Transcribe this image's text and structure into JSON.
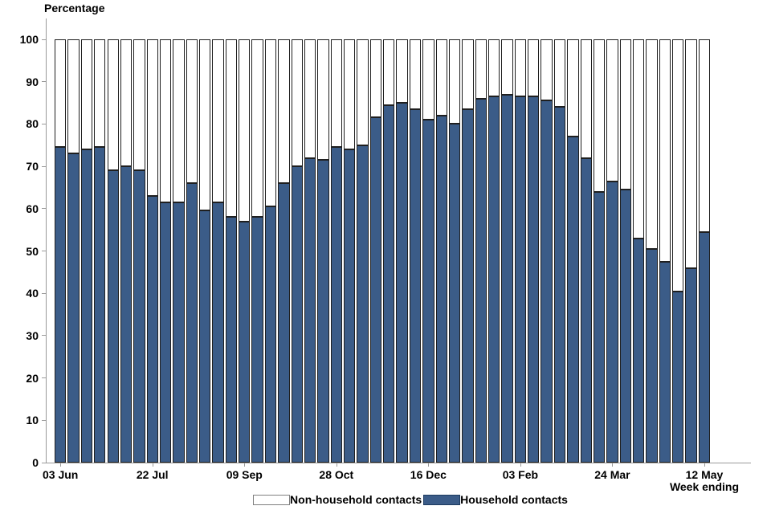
{
  "chart_data": {
    "type": "bar",
    "stacked": true,
    "title": "",
    "ylabel": "Percentage",
    "xlabel": "Week ending",
    "unit": "%",
    "ylim": [
      0,
      100
    ],
    "y_ticks": [
      0,
      10,
      20,
      30,
      40,
      50,
      60,
      70,
      80,
      90,
      100
    ],
    "grid": false,
    "legend_position": "bottom",
    "n_weeks": 50,
    "x_ticks": [
      {
        "label": "03 Jun",
        "week_index": 0
      },
      {
        "label": "22 Jul",
        "week_index": 7
      },
      {
        "label": "09 Sep",
        "week_index": 14
      },
      {
        "label": "28 Oct",
        "week_index": 21
      },
      {
        "label": "16 Dec",
        "week_index": 28
      },
      {
        "label": "03 Feb",
        "week_index": 35
      },
      {
        "label": "24 Mar",
        "week_index": 42
      },
      {
        "label": "12 May",
        "week_index": 49
      }
    ],
    "series": [
      {
        "name": "Household contacts",
        "color": "#3b5c88",
        "values": [
          74.5,
          73,
          74,
          74.5,
          69,
          70,
          69,
          63,
          61.5,
          61.5,
          66,
          59.5,
          61.5,
          58,
          57,
          58,
          60.5,
          66,
          70,
          72,
          71.5,
          74.5,
          74,
          75,
          81.5,
          84.5,
          85,
          83.5,
          81,
          82,
          80,
          83.5,
          86,
          86.5,
          87,
          86.5,
          86.5,
          85.5,
          84,
          77,
          72,
          64,
          66.5,
          64.5,
          53,
          50.5,
          47.5,
          40.5,
          46,
          54.5
        ]
      },
      {
        "name": "Non-household contacts",
        "color": "#ffffff",
        "values": [
          25.5,
          27,
          26,
          25.5,
          31,
          30,
          31,
          37,
          38.5,
          38.5,
          34,
          40.5,
          38.5,
          42,
          43,
          42,
          39.5,
          34,
          30,
          28,
          28.5,
          25.5,
          26,
          25,
          18.5,
          15.5,
          15,
          16.5,
          19,
          18,
          20,
          16.5,
          14,
          13.5,
          13,
          13.5,
          13.5,
          14.5,
          16,
          23,
          28,
          36,
          33.5,
          35.5,
          47,
          49.5,
          52.5,
          59.5,
          54,
          45.5
        ]
      }
    ]
  },
  "legend": {
    "items": [
      {
        "label": "Non-household contacts",
        "color": "#ffffff",
        "border": "#7f7f7f"
      },
      {
        "label": "Household contacts",
        "color": "#3b5c88",
        "border": "#1c3a5e"
      }
    ]
  },
  "colors": {
    "household_bar": "#3b5c88",
    "bar_outline": "#1f1f1f",
    "axis_line": "#9a9a9a",
    "text": "#000000"
  }
}
